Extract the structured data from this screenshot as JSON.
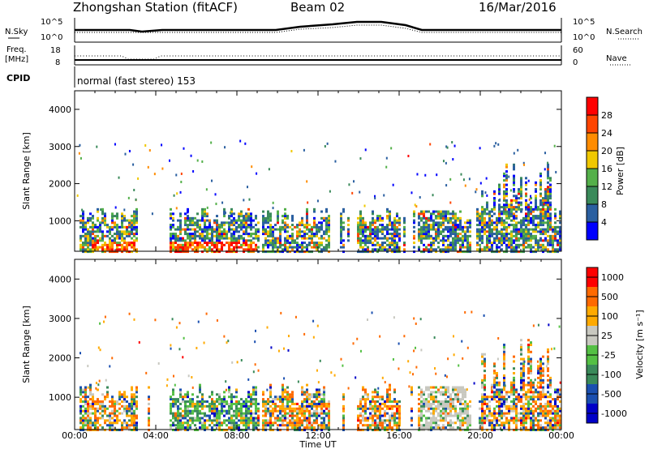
{
  "header": {
    "station": "Zhongshan Station (fitACF)",
    "beam": "Beam 02",
    "date": "16/Mar/2016"
  },
  "noise_panel": {
    "left_label": "N.Sky",
    "right_label": "N.Search",
    "left_ticks": [
      "10^5",
      "10^0"
    ],
    "right_ticks": [
      "10^5",
      "10^0"
    ]
  },
  "freq_panel": {
    "left_label_line1": "Freq.",
    "left_label_line2": "[MHz]",
    "right_label": "Nave",
    "left_ticks": [
      "18",
      "8"
    ],
    "right_ticks": [
      "60",
      "0"
    ]
  },
  "cpid": {
    "label": "CPID",
    "text": "normal (fast stereo) 153"
  },
  "x_axis": {
    "label": "Time UT",
    "ticks": [
      "00:00",
      "04:00",
      "08:00",
      "12:00",
      "16:00",
      "20:00",
      "00:00"
    ]
  },
  "colors": {
    "power": [
      "#0000ff",
      "#2a5fa0",
      "#3a8a5a",
      "#54b04a",
      "#f0c800",
      "#ff8c00",
      "#ff4400",
      "#ff0000"
    ],
    "velocity": [
      "#ff0000",
      "#ff6a00",
      "#ffaa00",
      "#c8c8c0",
      "#54c044",
      "#3a8a5a",
      "#1a4fb0",
      "#0000c8"
    ]
  },
  "chart_data": [
    {
      "type": "heatmap",
      "name": "power-panel",
      "ylabel": "Slant Range [km]",
      "yticks": [
        "1000",
        "2000",
        "3000",
        "4000"
      ],
      "ylim": [
        180,
        4500
      ],
      "xlim": [
        0,
        24
      ],
      "colorbar_label": "Power [dB]",
      "colorbar_ticks": [
        "4",
        "8",
        "12",
        "16",
        "20",
        "24",
        "28"
      ],
      "colorbar_range": [
        0,
        32
      ]
    },
    {
      "type": "heatmap",
      "name": "velocity-panel",
      "ylabel": "Slant Range [km]",
      "yticks": [
        "1000",
        "2000",
        "3000",
        "4000"
      ],
      "ylim": [
        180,
        4500
      ],
      "xlim": [
        0,
        24
      ],
      "colorbar_label": "Velocity [m s⁻¹]",
      "colorbar_ticks": [
        "1000",
        "500",
        "100",
        "25",
        "-25",
        "-100",
        "-500",
        "-1000"
      ]
    }
  ]
}
